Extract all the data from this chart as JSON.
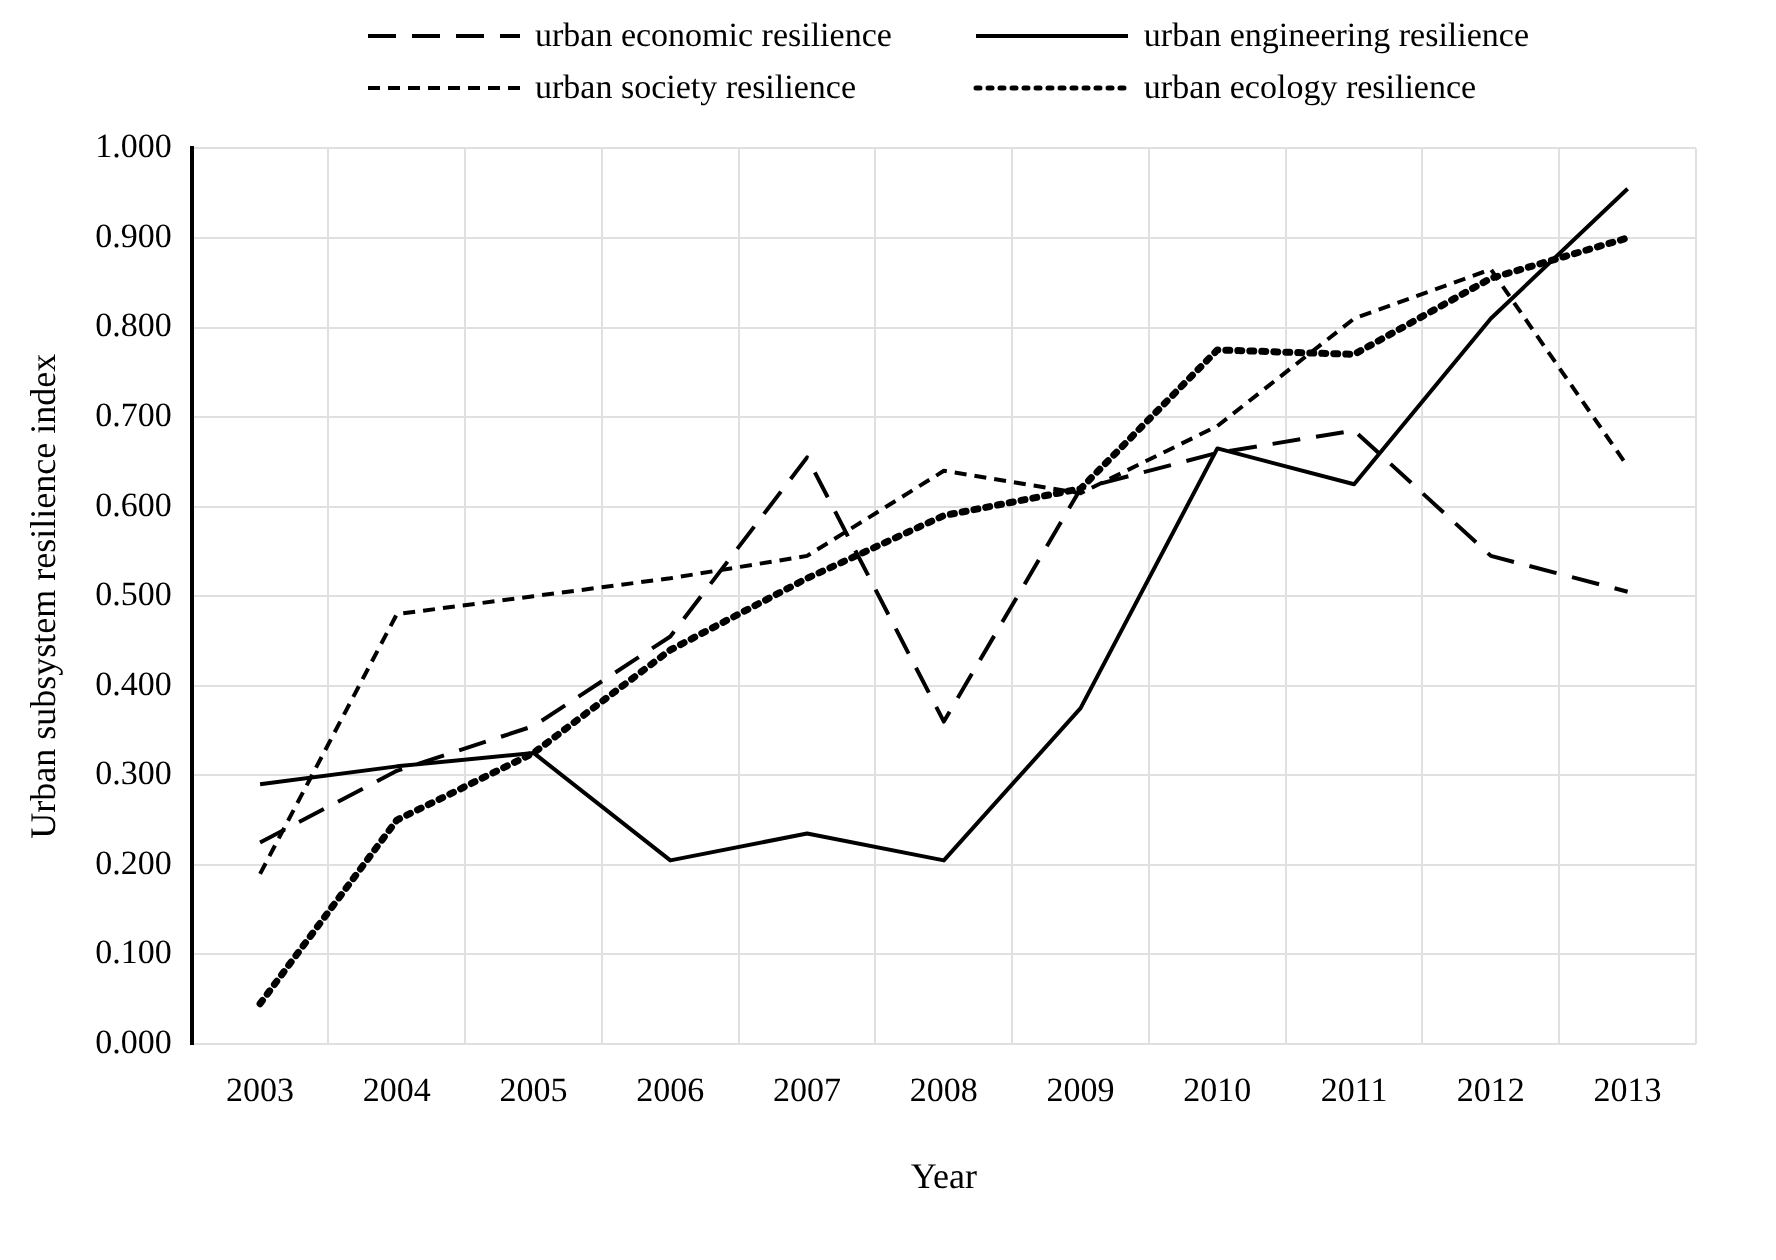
{
  "chart_data": {
    "type": "line",
    "xlabel": "Year",
    "ylabel": "Urban subsystem resilience index",
    "categories": [
      "2003",
      "2004",
      "2005",
      "2006",
      "2007",
      "2008",
      "2009",
      "2010",
      "2011",
      "2012",
      "2013"
    ],
    "series": [
      {
        "name": "urban economic resilience",
        "color": "#000000",
        "line_style": "dashed",
        "values": [
          0.225,
          0.305,
          0.355,
          0.455,
          0.655,
          0.36,
          0.62,
          0.66,
          0.685,
          0.545,
          0.505
        ]
      },
      {
        "name": "urban engineering resilience",
        "color": "#000000",
        "line_style": "solid",
        "values": [
          0.29,
          0.31,
          0.325,
          0.205,
          0.235,
          0.205,
          0.375,
          0.665,
          0.625,
          0.81,
          0.955
        ]
      },
      {
        "name": "urban society resilience",
        "color": "#000000",
        "line_style": "dashed",
        "values": [
          0.19,
          0.48,
          0.5,
          0.52,
          0.545,
          0.64,
          0.615,
          0.69,
          0.81,
          0.865,
          0.645
        ]
      },
      {
        "name": "urban ecology resilience",
        "color": "#000000",
        "line_style": "dotted",
        "values": [
          0.045,
          0.25,
          0.325,
          0.44,
          0.52,
          0.59,
          0.62,
          0.775,
          0.77,
          0.855,
          0.9
        ]
      }
    ],
    "ylim": [
      0,
      1
    ],
    "yticks": [
      {
        "value": 0,
        "label": "0.000"
      },
      {
        "value": 0.1,
        "label": "0.100"
      },
      {
        "value": 0.2,
        "label": "0.200"
      },
      {
        "value": 0.3,
        "label": "0.300"
      },
      {
        "value": 0.4,
        "label": "0.400"
      },
      {
        "value": 0.5,
        "label": "0.500"
      },
      {
        "value": 0.6,
        "label": "0.600"
      },
      {
        "value": 0.7,
        "label": "0.700"
      },
      {
        "value": 0.8,
        "label": "0.800"
      },
      {
        "value": 0.9,
        "label": "0.900"
      },
      {
        "value": 1,
        "label": "1.000"
      }
    ],
    "grid": true,
    "legend": "top",
    "marker": "none"
  }
}
